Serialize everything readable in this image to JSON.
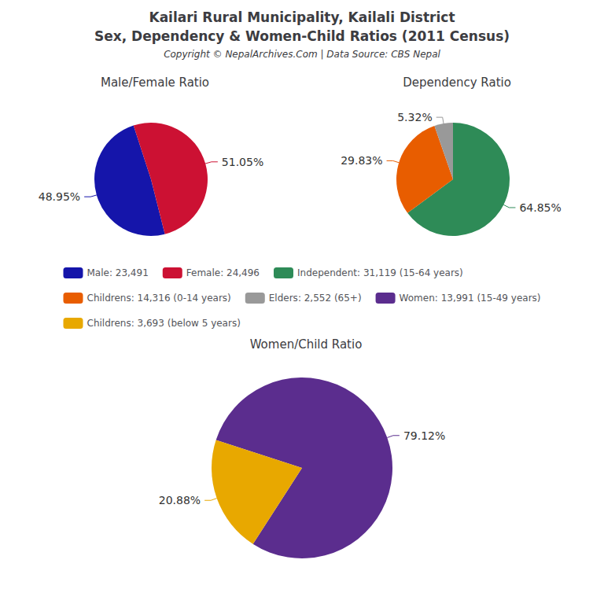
{
  "title": "Kailari Rural Municipality, Kailali District",
  "subtitle": "Sex, Dependency & Women-Child Ratios (2011 Census)",
  "annotations": [
    "Copyright © NepalArchives.Com | Data Source: CBS Nepal"
  ],
  "legend": "center",
  "chart_data": [
    {
      "type": "pie",
      "title": "Male/Female Ratio",
      "categories": [
        "Male: 23,491",
        "Female: 24,496"
      ],
      "values": [
        48.95,
        51.05
      ],
      "value_labels": [
        "48.95%",
        "51.05%"
      ],
      "colors": [
        "#1515aa",
        "#cc1133"
      ],
      "data_labels": true
    },
    {
      "type": "pie",
      "title": "Dependency Ratio",
      "categories": [
        "Independent: 31,119 (15-64 years)",
        "Childrens: 14,316 (0-14 years)",
        "Elders: 2,552 (65+)"
      ],
      "values": [
        64.85,
        29.83,
        5.32
      ],
      "value_labels": [
        "64.85%",
        "29.83%",
        "5.32%"
      ],
      "colors": [
        "#2e8b57",
        "#e85d00",
        "#999999"
      ],
      "data_labels": true
    },
    {
      "type": "pie",
      "title": "Women/Child Ratio",
      "categories": [
        "Women: 13,991 (15-49 years)",
        "Childrens: 3,693 (below 5 years)"
      ],
      "values": [
        79.12,
        20.88
      ],
      "value_labels": [
        "79.12%",
        "20.88%"
      ],
      "colors": [
        "#5b2d8e",
        "#e8a800"
      ],
      "data_labels": true
    }
  ]
}
